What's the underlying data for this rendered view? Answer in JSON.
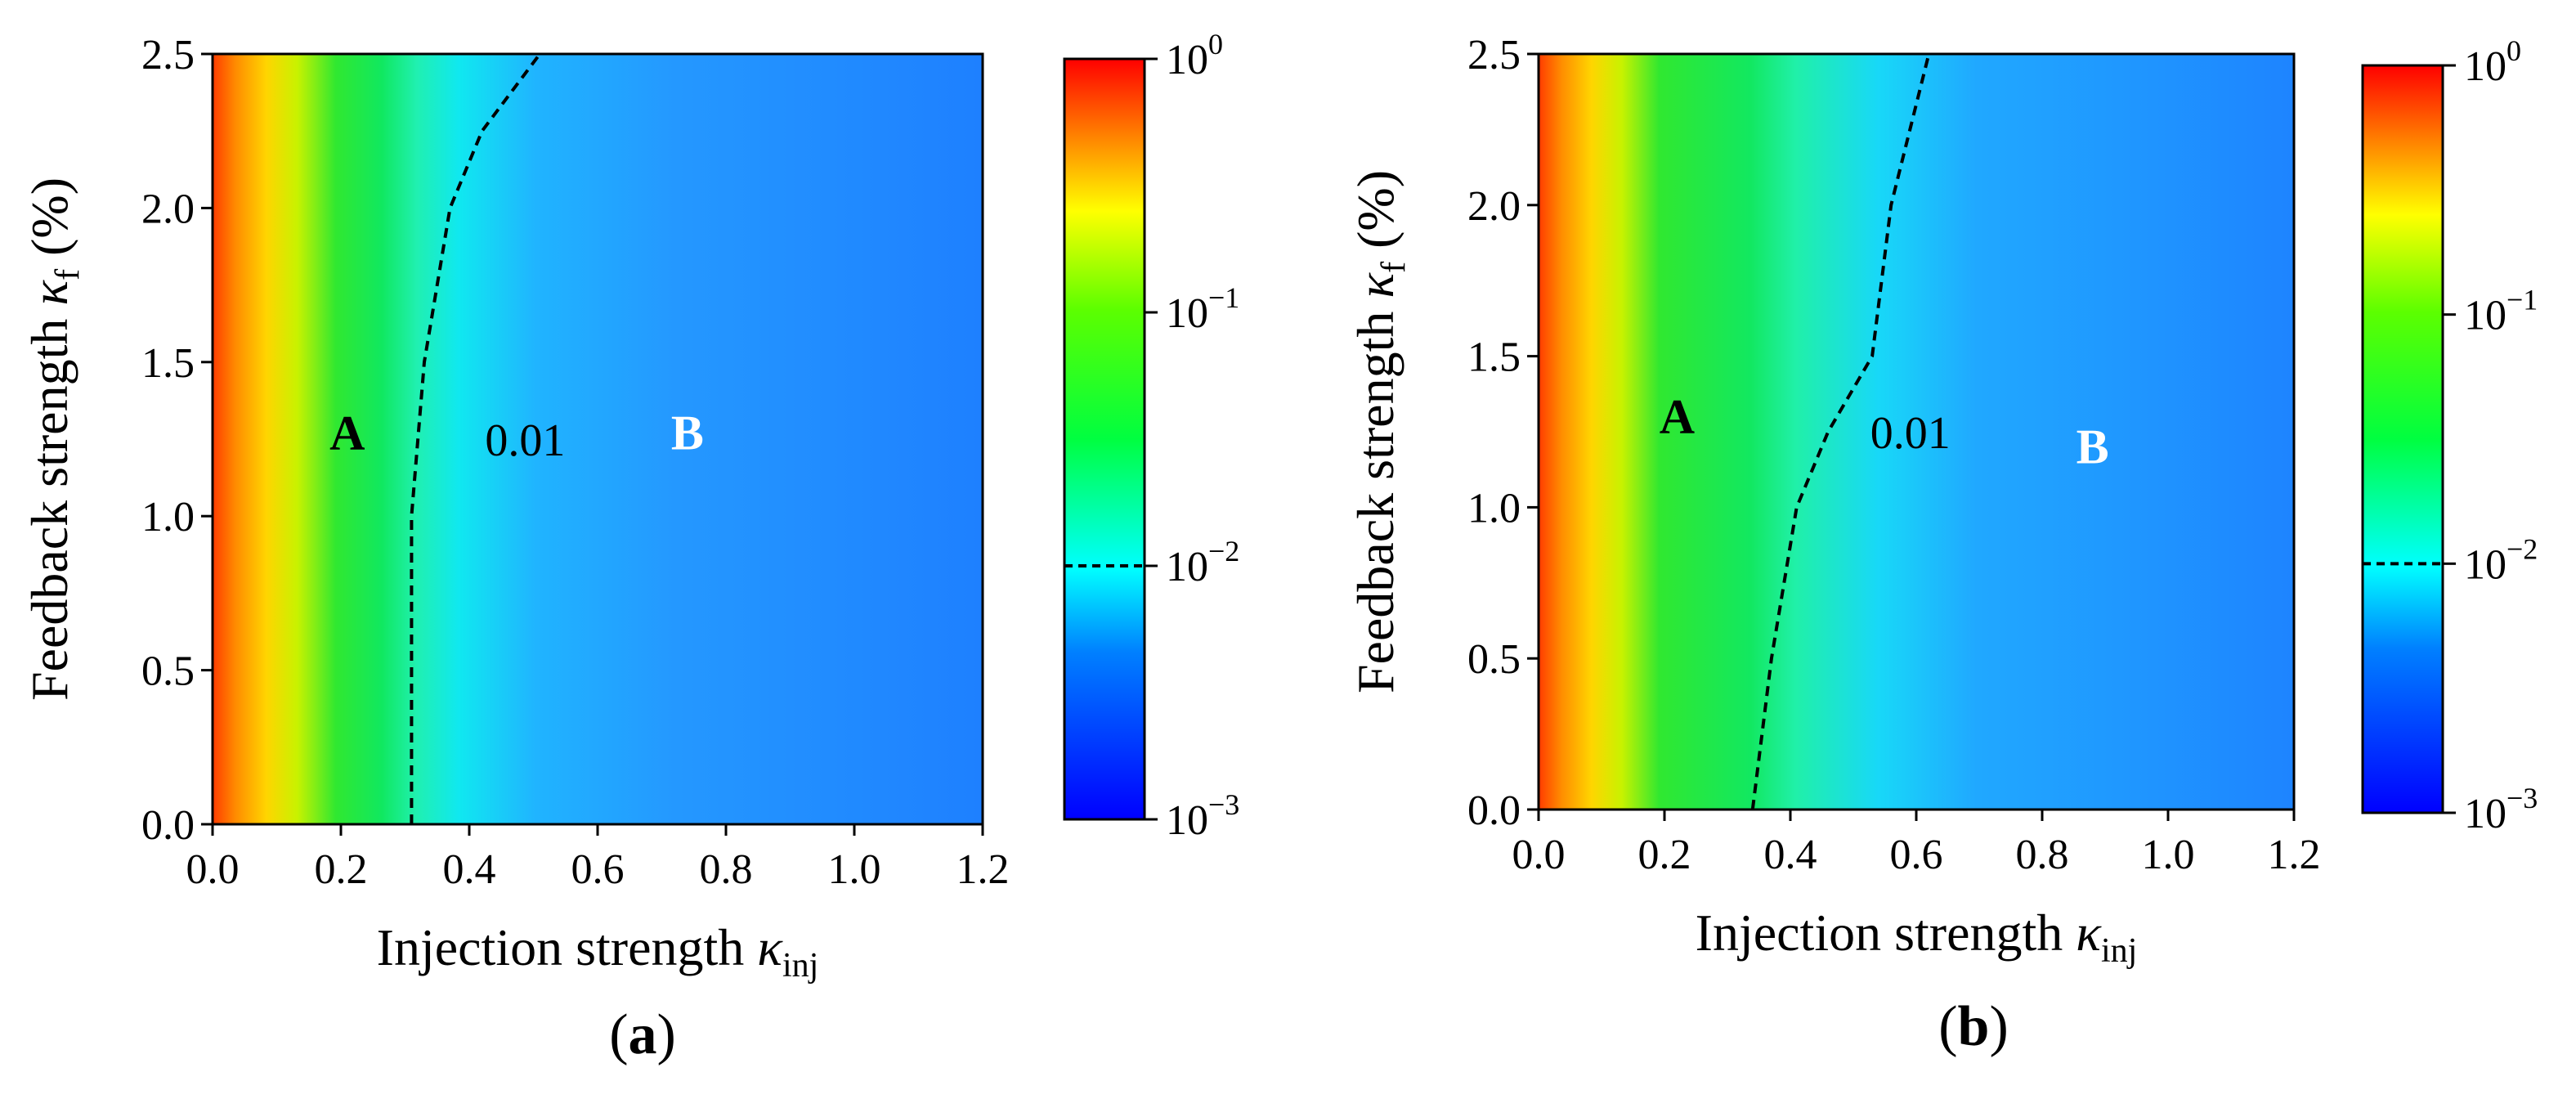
{
  "chart_data": [
    {
      "type": "heatmap",
      "panel_label": "a",
      "xlabel": "Injection strength",
      "xlabel_symbol": "κ",
      "xlabel_subscript": "inj",
      "ylabel": "Feedback strength",
      "ylabel_symbol": "κ",
      "ylabel_subscript": "f",
      "ylabel_unit": "(%)",
      "xlim": [
        0.0,
        1.2
      ],
      "ylim": [
        0.0,
        2.5
      ],
      "xticks": [
        "0.0",
        "0.2",
        "0.4",
        "0.6",
        "0.8",
        "1.0",
        "1.2"
      ],
      "yticks": [
        "0.0",
        "0.5",
        "1.0",
        "1.5",
        "2.0",
        "2.5"
      ],
      "contour_label": "0.01",
      "contour_level": 0.01,
      "contour": [
        {
          "x": 0.31,
          "y": 0.0
        },
        {
          "x": 0.31,
          "y": 0.5
        },
        {
          "x": 0.31,
          "y": 1.0
        },
        {
          "x": 0.33,
          "y": 1.5
        },
        {
          "x": 0.37,
          "y": 2.0
        },
        {
          "x": 0.42,
          "y": 2.25
        },
        {
          "x": 0.51,
          "y": 2.5
        }
      ],
      "region_labels": [
        {
          "text": "A",
          "x": 0.21,
          "y": 1.27,
          "color": "#000000"
        },
        {
          "text": "B",
          "x": 0.74,
          "y": 1.27,
          "color": "#ffffff"
        }
      ],
      "colorbar": {
        "scale": "log",
        "range": [
          0.001,
          1
        ],
        "tick_labels": [
          {
            "base": "10",
            "exp": "0",
            "value": 1
          },
          {
            "base": "10",
            "exp": "−1",
            "value": 0.1
          },
          {
            "base": "10",
            "exp": "−2",
            "value": 0.01
          },
          {
            "base": "10",
            "exp": "−3",
            "value": 0.001
          }
        ],
        "dashed_marker_value": 0.01
      }
    },
    {
      "type": "heatmap",
      "panel_label": "b",
      "xlabel": "Injection strength",
      "xlabel_symbol": "κ",
      "xlabel_subscript": "inj",
      "ylabel": "Feedback strength",
      "ylabel_symbol": "κ",
      "ylabel_subscript": "f",
      "ylabel_unit": "(%)",
      "xlim": [
        0.0,
        1.2
      ],
      "ylim": [
        0.0,
        2.5
      ],
      "xticks": [
        "0.0",
        "0.2",
        "0.4",
        "0.6",
        "0.8",
        "1.0",
        "1.2"
      ],
      "yticks": [
        "0.0",
        "0.5",
        "1.0",
        "1.5",
        "2.0",
        "2.5"
      ],
      "contour_label": "0.01",
      "contour_level": 0.01,
      "contour": [
        {
          "x": 0.34,
          "y": 0.0
        },
        {
          "x": 0.37,
          "y": 0.5
        },
        {
          "x": 0.41,
          "y": 1.0
        },
        {
          "x": 0.46,
          "y": 1.25
        },
        {
          "x": 0.53,
          "y": 1.5
        },
        {
          "x": 0.56,
          "y": 2.0
        },
        {
          "x": 0.62,
          "y": 2.5
        }
      ],
      "region_labels": [
        {
          "text": "A",
          "x": 0.22,
          "y": 1.3,
          "color": "#000000"
        },
        {
          "text": "B",
          "x": 0.88,
          "y": 1.2,
          "color": "#ffffff"
        }
      ],
      "colorbar": {
        "scale": "log",
        "range": [
          0.001,
          1
        ],
        "tick_labels": [
          {
            "base": "10",
            "exp": "0",
            "value": 1
          },
          {
            "base": "10",
            "exp": "−1",
            "value": 0.1
          },
          {
            "base": "10",
            "exp": "−2",
            "value": 0.01
          },
          {
            "base": "10",
            "exp": "−3",
            "value": 0.001
          }
        ],
        "dashed_marker_value": 0.01
      }
    }
  ]
}
